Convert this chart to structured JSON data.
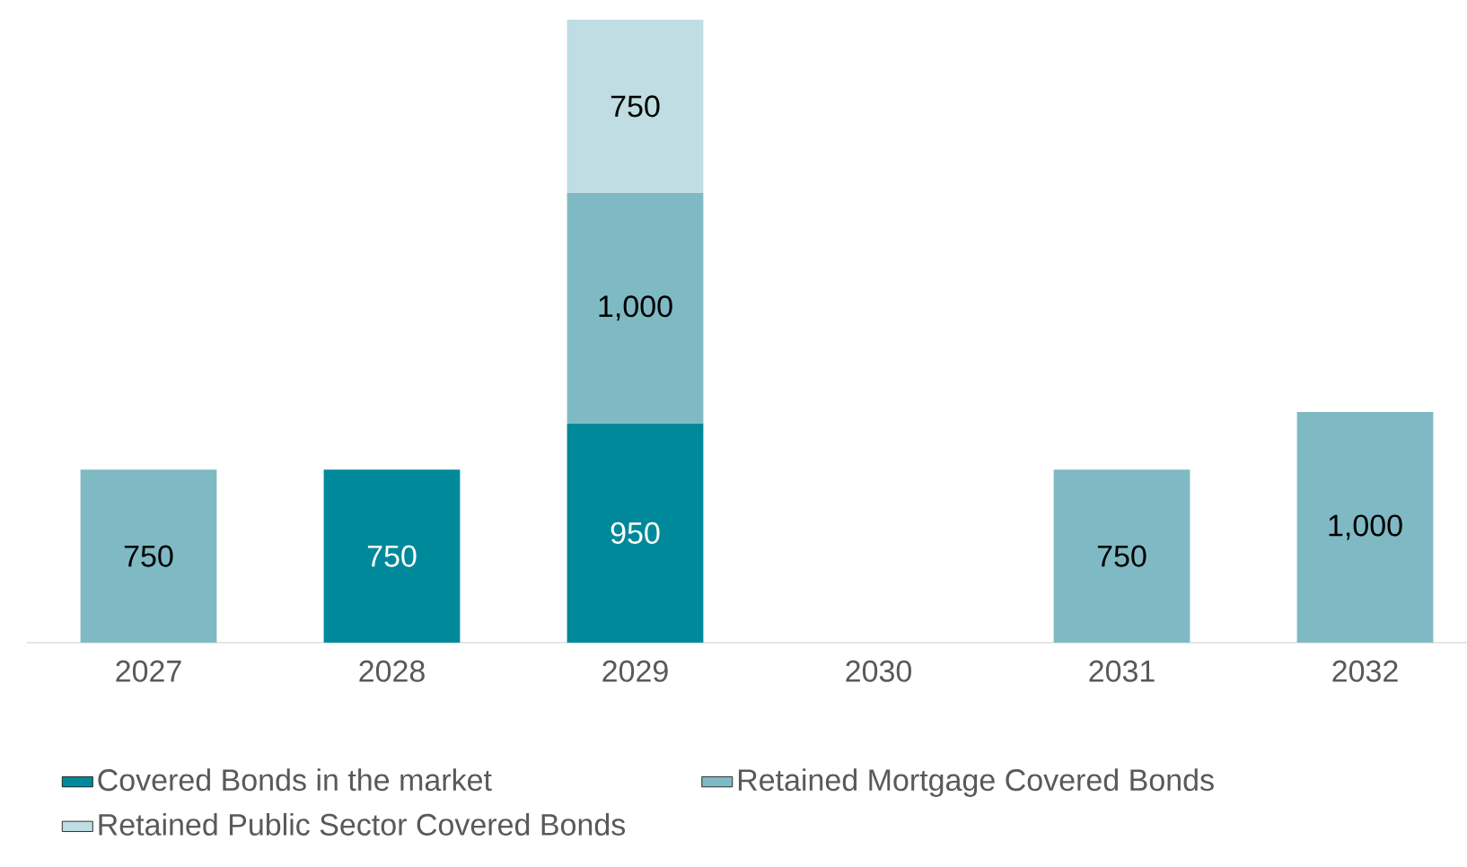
{
  "chart_data": {
    "type": "bar",
    "stacked": true,
    "categories": [
      "2027",
      "2028",
      "2029",
      "2030",
      "2031",
      "2032"
    ],
    "series": [
      {
        "name": "Covered Bonds in the market",
        "color": "#00899a",
        "values": [
          null,
          750,
          950,
          null,
          null,
          null
        ],
        "value_labels": [
          null,
          "750",
          "950",
          null,
          null,
          null
        ]
      },
      {
        "name": "Retained Mortgage Covered Bonds",
        "color": "#7fbac4",
        "values": [
          750,
          null,
          1000,
          null,
          750,
          1000
        ],
        "value_labels": [
          "750",
          null,
          "1,000",
          null,
          "750",
          "1,000"
        ]
      },
      {
        "name": "Retained Public Sector Covered Bonds",
        "color": "#bfdde2",
        "values": [
          null,
          null,
          750,
          null,
          null,
          null
        ],
        "value_labels": [
          null,
          null,
          "750",
          null,
          null,
          null
        ]
      }
    ],
    "legend": "bottom"
  }
}
